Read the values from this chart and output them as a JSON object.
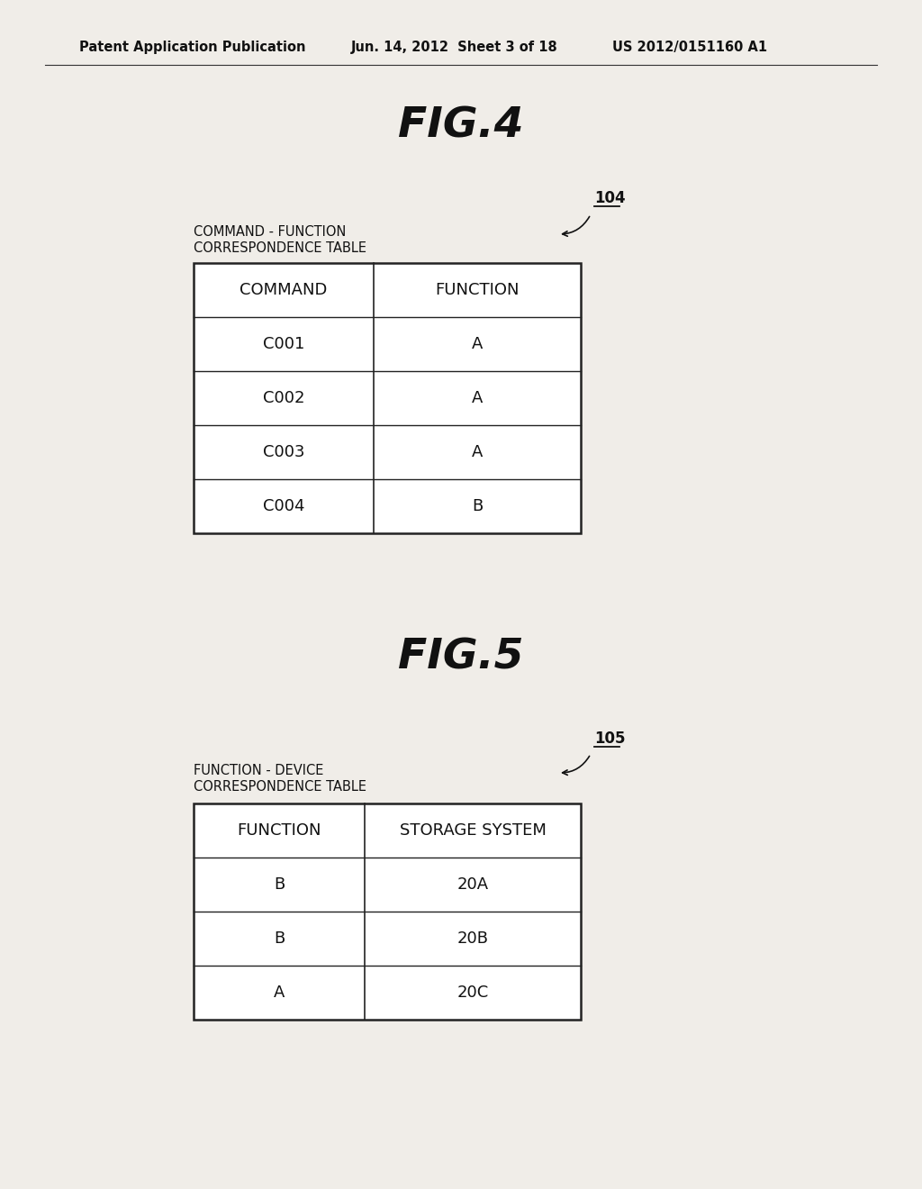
{
  "bg_color": "#f0ede8",
  "header_left": "Patent Application Publication",
  "header_mid": "Jun. 14, 2012  Sheet 3 of 18",
  "header_right": "US 2012/0151160 A1",
  "fig4_title": "FIG.4",
  "fig5_title": "FIG.5",
  "table1_label": "104",
  "table1_subtitle1": "COMMAND - FUNCTION",
  "table1_subtitle2": "CORRESPONDENCE TABLE",
  "table1_headers": [
    "COMMAND",
    "FUNCTION"
  ],
  "table1_rows": [
    [
      "C001",
      "A"
    ],
    [
      "C002",
      "A"
    ],
    [
      "C003",
      "A"
    ],
    [
      "C004",
      "B"
    ]
  ],
  "table2_label": "105",
  "table2_subtitle1": "FUNCTION - DEVICE",
  "table2_subtitle2": "CORRESPONDENCE TABLE",
  "table2_headers": [
    "FUNCTION",
    "STORAGE SYSTEM"
  ],
  "table2_rows": [
    [
      "B",
      "20A"
    ],
    [
      "B",
      "20B"
    ],
    [
      "A",
      "20C"
    ]
  ],
  "text_color": "#111111",
  "line_color": "#333333",
  "table_edge_color": "#222222"
}
